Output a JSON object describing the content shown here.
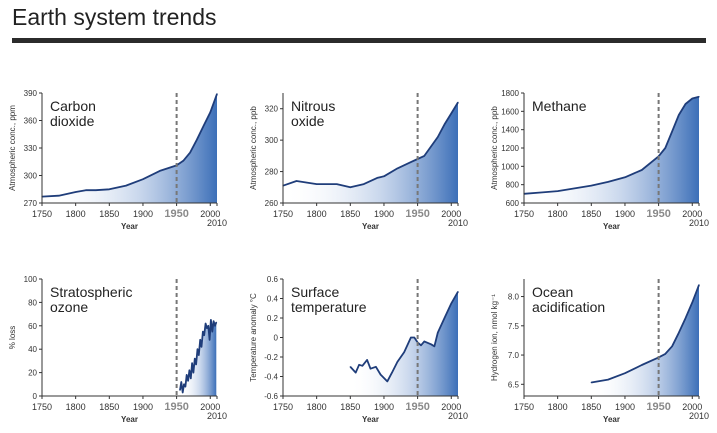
{
  "page": {
    "title": "Earth system trends"
  },
  "colors": {
    "line": "#1f3d7a",
    "fill_dark": "#3c6fb8",
    "fill_light": "#ffffff",
    "marker": "#777777",
    "axis": "#333333"
  },
  "chart_data": [
    {
      "type": "area",
      "name": "Carbon dioxide",
      "label_lines": [
        "Carbon",
        "dioxide"
      ],
      "ylabel": "Atmospheric conc., ppm",
      "xlabel": "Year",
      "xlim": [
        1750,
        2010
      ],
      "ylim": [
        270,
        390
      ],
      "xticks": [
        1750,
        1800,
        1850,
        1900,
        1950,
        2000
      ],
      "yticks": [
        270,
        300,
        330,
        360,
        390
      ],
      "extra_xtick": 2010,
      "marker_year": 1950,
      "marker_label": "1950",
      "x": [
        1750,
        1775,
        1800,
        1815,
        1830,
        1850,
        1875,
        1900,
        1925,
        1950,
        1960,
        1970,
        1980,
        1990,
        2000,
        2010
      ],
      "y": [
        277,
        278,
        282,
        284,
        284,
        285,
        289,
        296,
        305,
        311,
        316,
        325,
        339,
        354,
        369,
        389
      ]
    },
    {
      "type": "area",
      "name": "Nitrous oxide",
      "label_lines": [
        "Nitrous",
        "oxide"
      ],
      "ylabel": "Atmospheric conc., ppb",
      "xlabel": "Year",
      "xlim": [
        1750,
        2010
      ],
      "ylim": [
        260,
        330
      ],
      "xticks": [
        1750,
        1800,
        1850,
        1900,
        1950,
        2000
      ],
      "yticks": [
        260,
        280,
        300,
        320
      ],
      "extra_xtick": 2010,
      "marker_year": 1950,
      "marker_label": "1950",
      "x": [
        1750,
        1770,
        1800,
        1830,
        1850,
        1870,
        1890,
        1900,
        1920,
        1940,
        1950,
        1960,
        1970,
        1980,
        1990,
        2000,
        2010
      ],
      "y": [
        271,
        274,
        272,
        272,
        270,
        272,
        276,
        277,
        282,
        286,
        288,
        290,
        296,
        302,
        310,
        317,
        324
      ]
    },
    {
      "type": "area",
      "name": "Methane",
      "label_lines": [
        "Methane"
      ],
      "ylabel": "Atmospheric conc., ppb",
      "xlabel": "Year",
      "xlim": [
        1750,
        2010
      ],
      "ylim": [
        600,
        1800
      ],
      "xticks": [
        1750,
        1800,
        1850,
        1900,
        1950,
        2000
      ],
      "yticks": [
        600,
        800,
        1000,
        1200,
        1400,
        1600,
        1800
      ],
      "extra_xtick": 2010,
      "marker_year": 1950,
      "marker_label": "1950",
      "x": [
        1750,
        1775,
        1800,
        1850,
        1875,
        1900,
        1925,
        1950,
        1960,
        1970,
        1980,
        1990,
        2000,
        2010
      ],
      "y": [
        700,
        715,
        730,
        790,
        830,
        880,
        960,
        1110,
        1200,
        1380,
        1560,
        1680,
        1740,
        1760
      ]
    },
    {
      "type": "area",
      "name": "Stratospheric ozone",
      "label_lines": [
        "Stratospheric",
        "ozone"
      ],
      "ylabel": "% loss",
      "xlabel": "Year",
      "xlim": [
        1750,
        2010
      ],
      "ylim": [
        0,
        100
      ],
      "xticks": [
        1750,
        1800,
        1850,
        1900,
        1950,
        2000
      ],
      "yticks": [
        0,
        20,
        40,
        60,
        80,
        100
      ],
      "extra_xtick": 2010,
      "marker_year": 1950,
      "marker_label": "1950",
      "x": [
        1955,
        1957,
        1959,
        1961,
        1963,
        1965,
        1967,
        1969,
        1971,
        1973,
        1975,
        1977,
        1979,
        1981,
        1983,
        1985,
        1987,
        1989,
        1991,
        1993,
        1995,
        1997,
        1999,
        2001,
        2003,
        2005,
        2007,
        2009
      ],
      "y": [
        5,
        12,
        3,
        10,
        8,
        18,
        13,
        22,
        15,
        28,
        20,
        32,
        27,
        40,
        35,
        48,
        42,
        55,
        52,
        62,
        58,
        60,
        48,
        65,
        55,
        64,
        60,
        63
      ]
    },
    {
      "type": "area",
      "name": "Surface temperature",
      "label_lines": [
        "Surface",
        "temperature"
      ],
      "ylabel": "Temperature anomaly °C",
      "xlabel": "Year",
      "xlim": [
        1750,
        2010
      ],
      "ylim": [
        -0.6,
        0.6
      ],
      "xticks": [
        1750,
        1800,
        1850,
        1900,
        1950,
        2000
      ],
      "yticks": [
        -0.6,
        -0.4,
        -0.2,
        0,
        0.2,
        0.4,
        0.6
      ],
      "extra_xtick": 2010,
      "marker_year": 1950,
      "marker_label": "1950",
      "x": [
        1850,
        1858,
        1863,
        1868,
        1875,
        1880,
        1888,
        1895,
        1905,
        1912,
        1920,
        1930,
        1940,
        1945,
        1950,
        1955,
        1960,
        1970,
        1975,
        1980,
        1990,
        2000,
        2010
      ],
      "y": [
        -0.3,
        -0.36,
        -0.28,
        -0.29,
        -0.23,
        -0.32,
        -0.3,
        -0.38,
        -0.45,
        -0.36,
        -0.25,
        -0.15,
        0.0,
        0.0,
        -0.05,
        -0.08,
        -0.04,
        -0.07,
        -0.09,
        0.05,
        0.2,
        0.35,
        0.47
      ]
    },
    {
      "type": "area",
      "name": "Ocean acidification",
      "label_lines": [
        "Ocean",
        "acidification"
      ],
      "ylabel": "Hydrogen ion, nmol kg⁻¹",
      "xlabel": "Year",
      "xlim": [
        1750,
        2010
      ],
      "ylim": [
        6.3,
        8.3
      ],
      "xticks": [
        1750,
        1800,
        1850,
        1900,
        1950,
        2000
      ],
      "yticks": [
        6.5,
        7.0,
        7.5,
        8.0
      ],
      "extra_xtick": 2010,
      "marker_year": 1950,
      "marker_label": "1950",
      "x": [
        1850,
        1875,
        1900,
        1925,
        1950,
        1960,
        1970,
        1980,
        1990,
        2000,
        2010
      ],
      "y": [
        6.53,
        6.58,
        6.69,
        6.83,
        6.96,
        7.02,
        7.15,
        7.38,
        7.63,
        7.9,
        8.2
      ]
    }
  ]
}
